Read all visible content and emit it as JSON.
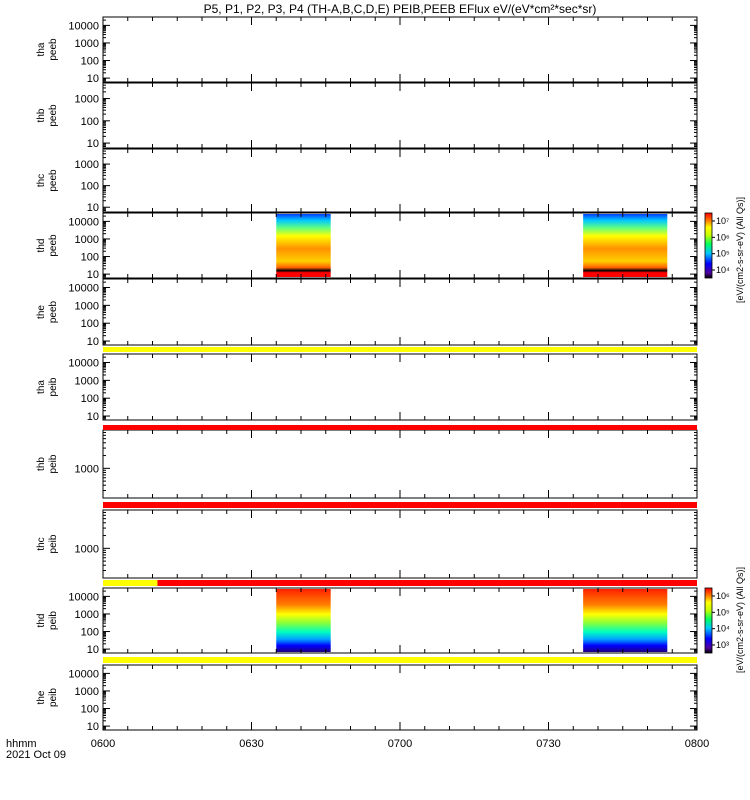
{
  "title": "P5, P1, P2, P3, P4 (TH-A,B,C,D,E) PEIB,PEEB EFlux eV/(eV*cm²*sec*sr)",
  "chart_data": {
    "type": "heatmap",
    "x_ticks": [
      "0600",
      "0630",
      "0700",
      "0730",
      "0800"
    ],
    "x_range": [
      "06:00",
      "08:00"
    ],
    "x_label_line1": "hhmm",
    "x_label_line2": "2021 Oct 09",
    "panels": [
      {
        "id": "tha-peeb",
        "label1": "tha",
        "label2": "peeb",
        "yticks": [
          "10",
          "100",
          "1000",
          "10000"
        ],
        "log": true,
        "data": "none"
      },
      {
        "id": "thb-peeb",
        "label1": "thb",
        "label2": "peeb",
        "yticks": [
          "10",
          "100",
          "1000"
        ],
        "log": true,
        "data": "none"
      },
      {
        "id": "thc-peeb",
        "label1": "thc",
        "label2": "peeb",
        "yticks": [
          "10",
          "100",
          "1000"
        ],
        "log": true,
        "data": "none"
      },
      {
        "id": "thd-peeb",
        "label1": "thd",
        "label2": "peeb",
        "yticks": [
          "10",
          "100",
          "1000",
          "10000"
        ],
        "log": true,
        "data": "spectrogram",
        "intervals": [
          [
            "06:35",
            "06:46"
          ],
          [
            "07:37",
            "07:54"
          ]
        ]
      },
      {
        "id": "the-peeb",
        "label1": "the",
        "label2": "peeb",
        "yticks": [
          "10",
          "100",
          "1000",
          "10000"
        ],
        "log": true,
        "data": "none"
      },
      {
        "id": "tha-peib",
        "label1": "tha",
        "label2": "peib",
        "yticks": [
          "10",
          "100",
          "1000",
          "10000"
        ],
        "log": true,
        "data": "none"
      },
      {
        "id": "thb-peib",
        "label1": "thb",
        "label2": "peib",
        "yticks": [
          "1000"
        ],
        "log": true,
        "data": "none"
      },
      {
        "id": "thc-peib",
        "label1": "thc",
        "label2": "peib",
        "yticks": [
          "1000"
        ],
        "log": true,
        "data": "none"
      },
      {
        "id": "thd-peib",
        "label1": "thd",
        "label2": "peib",
        "yticks": [
          "10",
          "100",
          "1000",
          "10000"
        ],
        "log": true,
        "data": "spectrogram",
        "intervals": [
          [
            "06:35",
            "06:46"
          ],
          [
            "07:37",
            "07:54"
          ]
        ]
      },
      {
        "id": "the-peib",
        "label1": "the",
        "label2": "peib",
        "yticks": [
          "10",
          "100",
          "1000",
          "10000"
        ],
        "log": true,
        "data": "none"
      }
    ],
    "bars": [
      {
        "after_panel": "the-peeb",
        "segments": [
          {
            "from": "06:00",
            "to": "08:00",
            "color": "#ffff00"
          }
        ]
      },
      {
        "after_panel": "tha-peib",
        "segments": [
          {
            "from": "06:00",
            "to": "08:00",
            "color": "#ff0000"
          }
        ]
      },
      {
        "after_panel": "thb-peib",
        "segments": [
          {
            "from": "06:00",
            "to": "08:00",
            "color": "#ff0000"
          }
        ]
      },
      {
        "after_panel": "thc-peib",
        "segments": [
          {
            "from": "06:00",
            "to": "06:11",
            "color": "#ffff00"
          },
          {
            "from": "06:11",
            "to": "08:00",
            "color": "#ff0000"
          }
        ]
      },
      {
        "after_panel": "thd-peib",
        "segments": [
          {
            "from": "06:00",
            "to": "08:00",
            "color": "#ffff00"
          }
        ]
      }
    ],
    "colorbars": [
      {
        "for_panel": "thd-peeb",
        "labels": [
          "10⁴",
          "10⁵",
          "10⁶",
          "10⁷"
        ],
        "title": "[eV/(cm2-s-sr-eV) (All Qs)]"
      },
      {
        "for_panel": "thd-peib",
        "labels": [
          "10³",
          "10⁴",
          "10⁵",
          "10⁶"
        ],
        "title": "[eV/(cm2-s-sr-eV) (All Qs)]"
      }
    ]
  }
}
